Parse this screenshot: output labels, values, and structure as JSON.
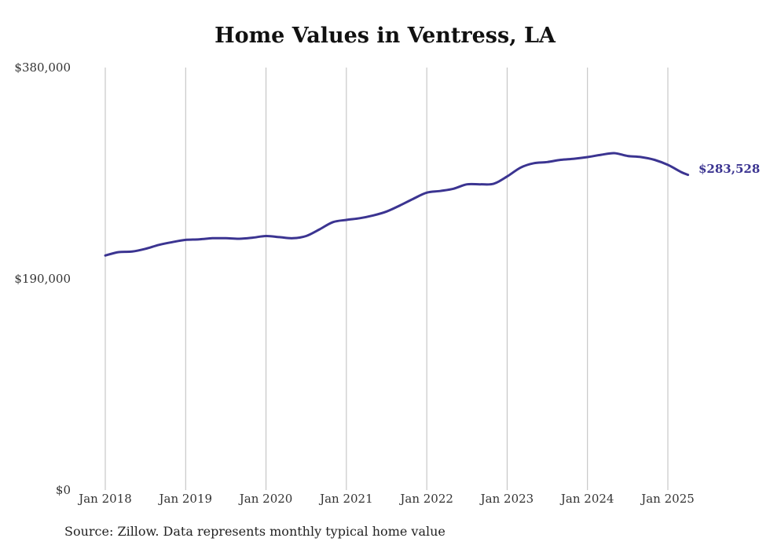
{
  "chart_data": {
    "type": "line",
    "title": "Home Values in Ventress, LA",
    "xlabel": "",
    "ylabel": "",
    "ylim": [
      0,
      380000
    ],
    "y_ticks": [
      {
        "value": 0,
        "label": "$0"
      },
      {
        "value": 190000,
        "label": "$190,000"
      },
      {
        "value": 380000,
        "label": "$380,000"
      }
    ],
    "x_ticks": [
      "Jan 2018",
      "Jan 2019",
      "Jan 2020",
      "Jan 2021",
      "Jan 2022",
      "Jan 2023",
      "Jan 2024",
      "Jan 2025"
    ],
    "grid": "vertical",
    "line_color": "#3b3491",
    "series": [
      {
        "name": "",
        "points": [
          [
            "2018-01",
            211000
          ],
          [
            "2018-03",
            214000
          ],
          [
            "2018-05",
            214500
          ],
          [
            "2018-07",
            217000
          ],
          [
            "2018-09",
            220500
          ],
          [
            "2018-11",
            223000
          ],
          [
            "2019-01",
            225000
          ],
          [
            "2019-03",
            225500
          ],
          [
            "2019-05",
            226500
          ],
          [
            "2019-07",
            226500
          ],
          [
            "2019-09",
            226000
          ],
          [
            "2019-11",
            227000
          ],
          [
            "2020-01",
            228500
          ],
          [
            "2020-03",
            227500
          ],
          [
            "2020-05",
            226500
          ],
          [
            "2020-07",
            228500
          ],
          [
            "2020-09",
            234500
          ],
          [
            "2020-11",
            241000
          ],
          [
            "2021-01",
            243000
          ],
          [
            "2021-03",
            244500
          ],
          [
            "2021-05",
            247000
          ],
          [
            "2021-07",
            250500
          ],
          [
            "2021-09",
            256000
          ],
          [
            "2021-11",
            262000
          ],
          [
            "2022-01",
            267500
          ],
          [
            "2022-03",
            269000
          ],
          [
            "2022-05",
            271000
          ],
          [
            "2022-07",
            275000
          ],
          [
            "2022-09",
            275000
          ],
          [
            "2022-11",
            275500
          ],
          [
            "2023-01",
            282000
          ],
          [
            "2023-03",
            290000
          ],
          [
            "2023-05",
            294000
          ],
          [
            "2023-07",
            295000
          ],
          [
            "2023-09",
            297000
          ],
          [
            "2023-11",
            298000
          ],
          [
            "2024-01",
            299500
          ],
          [
            "2024-03",
            301500
          ],
          [
            "2024-05",
            303000
          ],
          [
            "2024-07",
            300500
          ],
          [
            "2024-09",
            299500
          ],
          [
            "2024-11",
            297000
          ],
          [
            "2025-01",
            292500
          ],
          [
            "2025-03",
            286000
          ],
          [
            "2025-04",
            283528
          ]
        ]
      }
    ],
    "end_label": "$283,528"
  },
  "source": "Source: Zillow. Data represents monthly typical home value"
}
